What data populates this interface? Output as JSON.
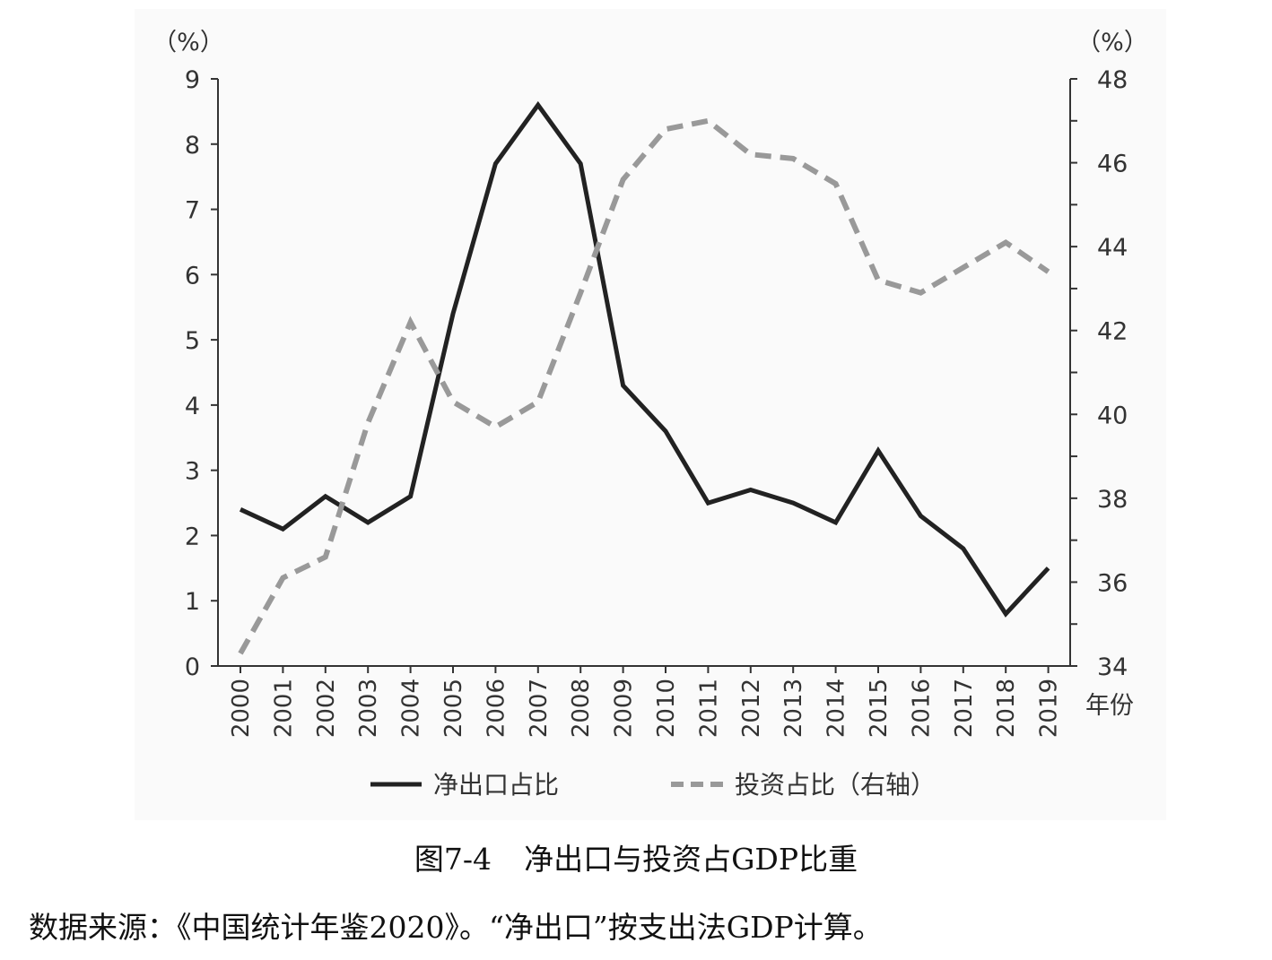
{
  "caption": {
    "number": "图7-4",
    "title": "净出口与投资占GDP比重"
  },
  "source_note": "数据来源：《中国统计年鉴2020》。“净出口”按支出法GDP计算。",
  "chart_data": {
    "type": "line",
    "x": [
      "2000",
      "2001",
      "2002",
      "2003",
      "2004",
      "2005",
      "2006",
      "2007",
      "2008",
      "2009",
      "2010",
      "2011",
      "2012",
      "2013",
      "2014",
      "2015",
      "2016",
      "2017",
      "2018",
      "2019"
    ],
    "xlabel": "年份",
    "left_axis": {
      "unit": "（%）",
      "ylim": [
        0,
        9
      ],
      "ticks": [
        "0",
        "1",
        "2",
        "3",
        "4",
        "5",
        "6",
        "7",
        "8",
        "9"
      ]
    },
    "right_axis": {
      "unit": "（%）",
      "ylim": [
        34,
        48
      ],
      "ticks": [
        "34",
        "36",
        "38",
        "40",
        "42",
        "44",
        "46",
        "48"
      ]
    },
    "series": [
      {
        "name": "净出口占比",
        "axis": "left",
        "style": "solid",
        "color": "#222222",
        "values": [
          2.4,
          2.1,
          2.6,
          2.2,
          2.6,
          5.4,
          7.7,
          8.6,
          7.7,
          4.3,
          3.6,
          2.5,
          2.7,
          2.5,
          2.2,
          3.3,
          2.3,
          1.8,
          0.8,
          1.5
        ]
      },
      {
        "name": "投资占比（右轴）",
        "axis": "right",
        "style": "dashed",
        "color": "#999999",
        "values": [
          34.3,
          36.1,
          36.6,
          39.8,
          42.2,
          40.3,
          39.7,
          40.3,
          42.9,
          45.6,
          46.8,
          47.0,
          46.2,
          46.1,
          45.5,
          43.2,
          42.9,
          43.5,
          44.1,
          43.4
        ]
      }
    ],
    "grid": false,
    "legend_position": "bottom"
  }
}
